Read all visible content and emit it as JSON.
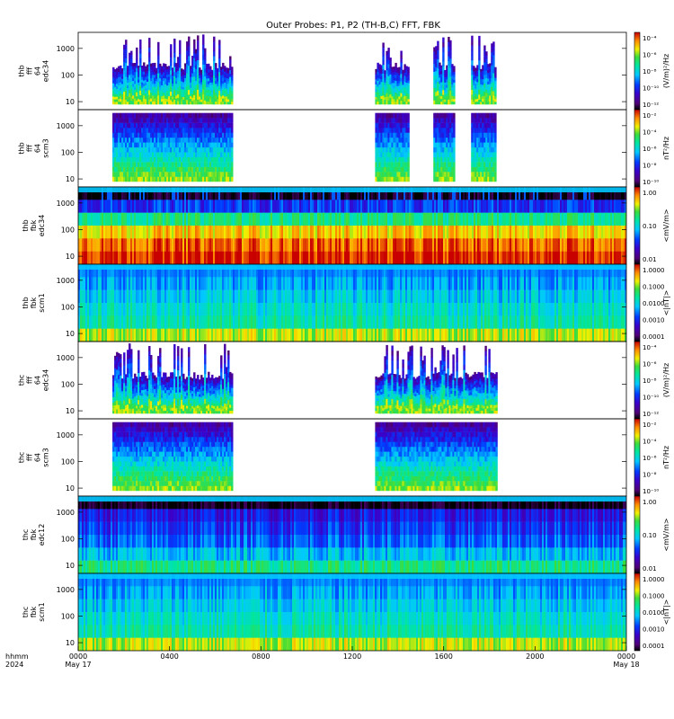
{
  "chart_data": {
    "type": "heatmap",
    "title": "Outer Probes: P1, P2 (TH-B,C) FFT, FBK",
    "colormap": "rainbow (black/purple low -> blue -> cyan -> green -> yellow -> red high)",
    "x_axis": {
      "range_hours": [
        0,
        24
      ],
      "corner_labels": [
        "hhmm",
        "2024"
      ],
      "ticks": [
        {
          "hour": 0,
          "label": "0000",
          "date": "May 17"
        },
        {
          "hour": 4,
          "label": "0400"
        },
        {
          "hour": 8,
          "label": "0800"
        },
        {
          "hour": 12,
          "label": "1200"
        },
        {
          "hour": 16,
          "label": "1600"
        },
        {
          "hour": 20,
          "label": "2000"
        },
        {
          "hour": 24,
          "label": "0000",
          "date": "May 18"
        }
      ]
    },
    "panels": [
      {
        "ylabel": [
          "thb",
          "fff",
          "64",
          "edc34"
        ],
        "y_scale": "log",
        "y_ticks": [
          10,
          100,
          1000
        ],
        "kind": "fff_edc",
        "data_intervals_hours": [
          [
            1.5,
            6.7
          ],
          [
            13.0,
            14.45
          ],
          [
            15.55,
            16.45
          ],
          [
            17.2,
            18.3
          ]
        ],
        "colorbar": {
          "label": "(V/m)²/Hz",
          "scale": "log",
          "tick_labels": [
            "10⁻⁴",
            "10⁻⁶",
            "10⁻⁸",
            "10⁻¹⁰",
            "10⁻¹²"
          ]
        }
      },
      {
        "ylabel": [
          "thb",
          "fff",
          "64",
          "scm3"
        ],
        "y_scale": "log",
        "y_ticks": [
          10,
          100,
          1000
        ],
        "kind": "fff_scm",
        "data_intervals_hours": [
          [
            1.5,
            6.7
          ],
          [
            13.0,
            14.45
          ],
          [
            15.55,
            16.45
          ],
          [
            17.2,
            18.3
          ]
        ],
        "colorbar": {
          "label": "nT²/Hz",
          "scale": "log",
          "tick_labels": [
            "10⁻²",
            "10⁻⁴",
            "10⁻⁶",
            "10⁻⁸",
            "10⁻¹⁰"
          ]
        }
      },
      {
        "ylabel": [
          "thb",
          "fbk",
          "edc34"
        ],
        "y_scale": "log",
        "y_ticks": [
          10,
          100,
          1000
        ],
        "kind": "fbk_edc",
        "data_intervals_hours": [
          [
            0,
            24
          ]
        ],
        "colorbar": {
          "label": "<mV/m>",
          "scale": "log",
          "tick_labels": [
            "1.00",
            "0.10",
            "0.01"
          ]
        }
      },
      {
        "ylabel": [
          "thb",
          "fbk",
          "scm1"
        ],
        "y_scale": "log",
        "y_ticks": [
          10,
          100,
          1000
        ],
        "kind": "fbk_scm",
        "data_intervals_hours": [
          [
            0,
            24
          ]
        ],
        "colorbar": {
          "label": "<|nT|>",
          "scale": "log",
          "tick_labels": [
            "1.0000",
            "0.1000",
            "0.0100",
            "0.0010",
            "0.0001"
          ]
        }
      },
      {
        "ylabel": [
          "thc",
          "fff",
          "64",
          "edc34"
        ],
        "y_scale": "log",
        "y_ticks": [
          10,
          100,
          1000
        ],
        "kind": "fff_edc",
        "data_intervals_hours": [
          [
            1.5,
            6.7
          ],
          [
            13.0,
            18.3
          ]
        ],
        "colorbar": {
          "label": "(V/m)²/Hz",
          "scale": "log",
          "tick_labels": [
            "10⁻⁴",
            "10⁻⁶",
            "10⁻⁸",
            "10⁻¹⁰",
            "10⁻¹²"
          ]
        }
      },
      {
        "ylabel": [
          "thc",
          "fff",
          "64",
          "scm3"
        ],
        "y_scale": "log",
        "y_ticks": [
          10,
          100,
          1000
        ],
        "kind": "fff_scm",
        "data_intervals_hours": [
          [
            1.5,
            6.7
          ],
          [
            13.0,
            18.3
          ]
        ],
        "colorbar": {
          "label": "nT²/Hz",
          "scale": "log",
          "tick_labels": [
            "10⁻²",
            "10⁻⁴",
            "10⁻⁶",
            "10⁻⁸",
            "10⁻¹⁰"
          ]
        }
      },
      {
        "ylabel": [
          "thc",
          "fbk",
          "edc12"
        ],
        "y_scale": "log",
        "y_ticks": [
          10,
          100,
          1000
        ],
        "kind": "fbk_edc_c",
        "data_intervals_hours": [
          [
            0,
            24
          ]
        ],
        "colorbar": {
          "label": "<mV/m>",
          "scale": "log",
          "tick_labels": [
            "1.00",
            "0.10",
            "0.01"
          ]
        }
      },
      {
        "ylabel": [
          "thc",
          "fbk",
          "scm1"
        ],
        "y_scale": "log",
        "y_ticks": [
          10,
          100,
          1000
        ],
        "kind": "fbk_scm",
        "data_intervals_hours": [
          [
            0,
            24
          ]
        ],
        "colorbar": {
          "label": "<|nT|>",
          "scale": "log",
          "tick_labels": [
            "1.0000",
            "0.1000",
            "0.0100",
            "0.0010",
            "0.0001"
          ]
        }
      }
    ]
  }
}
